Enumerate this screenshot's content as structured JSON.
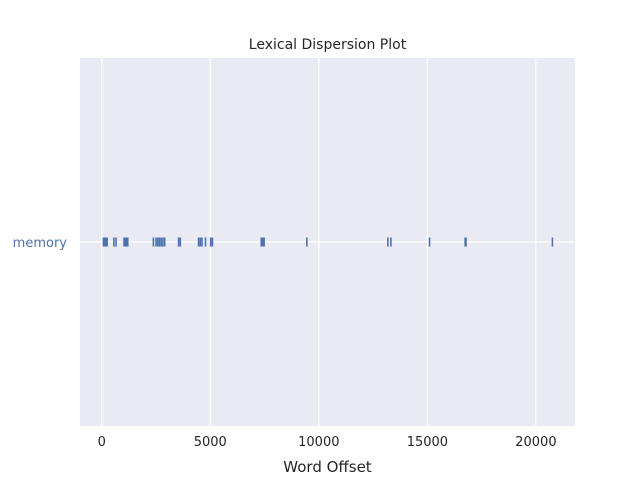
{
  "chart_data": {
    "type": "scatter",
    "title": "Lexical Dispersion Plot",
    "xlabel": "Word Offset",
    "ylabel": "",
    "xlim": [
      -1000,
      21800
    ],
    "grid": true,
    "x_ticks": [
      0,
      5000,
      10000,
      15000,
      20000
    ],
    "x_tick_labels": [
      "0",
      "5000",
      "10000",
      "15000",
      "20000"
    ],
    "categories": [
      "memory"
    ],
    "series": [
      {
        "name": "memory",
        "marker": "|",
        "x": [
          80,
          120,
          160,
          200,
          250,
          560,
          660,
          1030,
          1080,
          1120,
          1160,
          1200,
          2380,
          2500,
          2580,
          2660,
          2740,
          2820,
          2900,
          3540,
          3620,
          4460,
          4540,
          4620,
          4780,
          5020,
          5100,
          7350,
          7420,
          7480,
          9450,
          13180,
          13320,
          15100,
          16740,
          16780,
          20760
        ]
      }
    ],
    "colors": {
      "marker": "#4c72b0",
      "ytick_label": "#4c72b0",
      "plot_background": "#eaeaf2",
      "grid": "#ffffff",
      "text": "#262626"
    }
  }
}
